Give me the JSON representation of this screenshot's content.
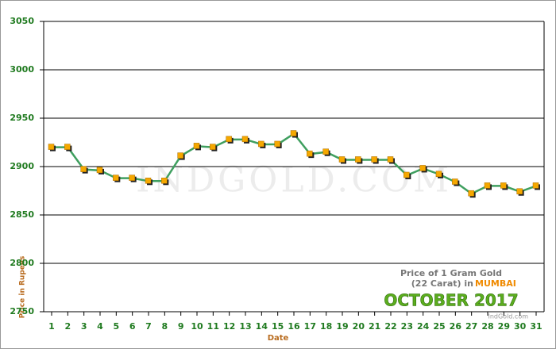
{
  "chart_data": {
    "type": "line",
    "y_label": "Price in Rupees",
    "x_label": "Date",
    "annotations": {
      "line1": "Price of 1 Gram Gold",
      "line2": "(22 Carat) in",
      "city": "MUMBAI",
      "period": "OCTOBER 2017",
      "site": "IndGold.com"
    },
    "watermark": "INDGOLD.COM",
    "categories": [
      "1",
      "2",
      "3",
      "4",
      "5",
      "6",
      "7",
      "8",
      "9",
      "10",
      "11",
      "12",
      "13",
      "14",
      "15",
      "16",
      "17",
      "18",
      "19",
      "20",
      "21",
      "22",
      "23",
      "24",
      "25",
      "26",
      "27",
      "28",
      "29",
      "30",
      "31"
    ],
    "values": [
      2920,
      2920,
      2897,
      2896,
      2888,
      2888,
      2885,
      2885,
      2911,
      2921,
      2920,
      2928,
      2928,
      2923,
      2923,
      2934,
      2913,
      2915,
      2907,
      2907,
      2907,
      2907,
      2891,
      2898,
      2892,
      2884,
      2872,
      2880,
      2880,
      2874,
      2880
    ],
    "color": "#3f9f5f",
    "marker_color": "#f5a800",
    "ylim": [
      2750,
      3050
    ],
    "yticks": [
      2750,
      2800,
      2850,
      2900,
      2950,
      3000,
      3050
    ],
    "grid": true
  }
}
